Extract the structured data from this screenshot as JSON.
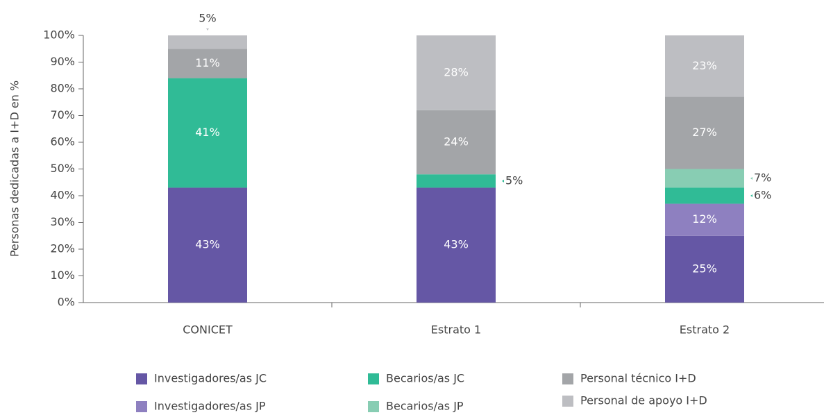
{
  "chart_data": {
    "type": "stacked_bar",
    "y_label": "Personas dedicadas a I+D en %",
    "categories": [
      "CONICET",
      "Estrato 1",
      "Estrato 2"
    ],
    "series": [
      {
        "name": "Investigadores/as JC",
        "color": "#6557a5",
        "values": [
          43,
          43,
          25
        ],
        "value_labels": [
          "43%",
          "43%",
          "25%"
        ]
      },
      {
        "name": "Investigadores/as JP",
        "color": "#8e80c0",
        "values": [
          null,
          null,
          12
        ],
        "value_labels": [
          null,
          null,
          "12%"
        ]
      },
      {
        "name": "Becarios/as JC",
        "color": "#30bb96",
        "values": [
          41,
          5,
          6
        ],
        "value_labels": [
          "41%",
          "5%",
          "6%"
        ]
      },
      {
        "name": "Becarios/as JP",
        "color": "#88cdb3",
        "values": [
          null,
          null,
          7
        ],
        "value_labels": [
          null,
          null,
          "7%"
        ]
      },
      {
        "name": "Personal técnico I+D",
        "color": "#a3a5a8",
        "values": [
          11,
          24,
          27
        ],
        "value_labels": [
          "11%",
          "24%",
          "27%"
        ]
      },
      {
        "name": "Personal de apoyo I+D",
        "color": "#bdbec2",
        "values": [
          5,
          28,
          23
        ],
        "value_labels": [
          "5%",
          "28%",
          "23%"
        ]
      }
    ],
    "ylim": [
      0,
      100
    ],
    "yticks": [
      {
        "value": 0,
        "label": "0%"
      },
      {
        "value": 10,
        "label": "10%"
      },
      {
        "value": 20,
        "label": "20%"
      },
      {
        "value": 30,
        "label": "30%"
      },
      {
        "value": 40,
        "label": "40%"
      },
      {
        "value": 50,
        "label": "50%"
      },
      {
        "value": 60,
        "label": "60%"
      },
      {
        "value": 70,
        "label": "70%"
      },
      {
        "value": 80,
        "label": "80%"
      },
      {
        "value": 90,
        "label": "90%"
      },
      {
        "value": 100,
        "label": "100%"
      }
    ],
    "grid": false,
    "legend": "bottom"
  }
}
